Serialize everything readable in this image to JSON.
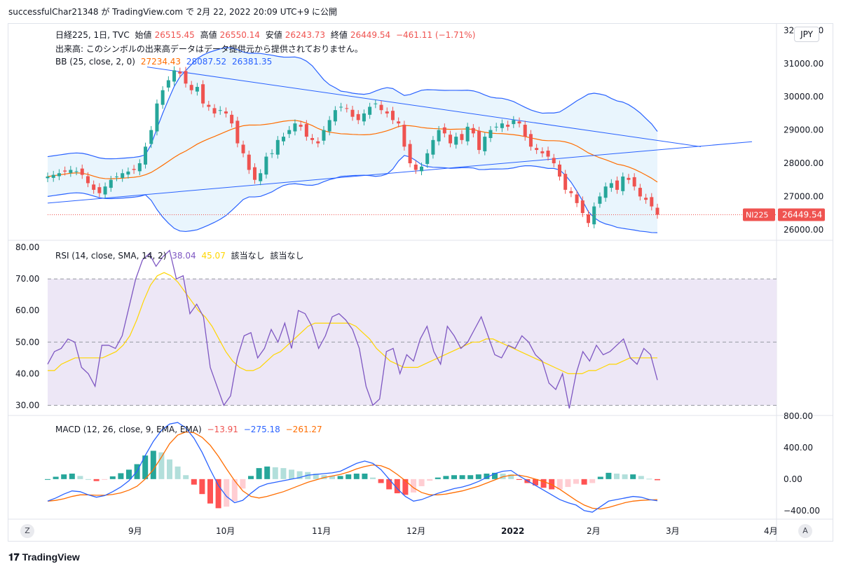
{
  "caption": "successfulChar21348 が TradingView.com で 2月 22, 2022 20:09 UTC+9 に公開",
  "currency_button": "JPY",
  "scale_toggle_left": "Z",
  "scale_toggle_right": "A",
  "footer": {
    "mark": "𝟏𝟕",
    "brand": "TradingView"
  },
  "main_legend": {
    "symbol": "日経225, 1日, TVC",
    "open_label": "始値",
    "open": "26515.45",
    "high_label": "高値",
    "high": "26550.14",
    "low_label": "安値",
    "low": "26243.73",
    "close_label": "終値",
    "close": "26449.54",
    "change": "−461.11 (−1.71%)",
    "volume_note": "出来高: このシンボルの出来高データはデータ提供元から提供されておりません。",
    "bb_label": "BB (25, close, 2, 0)",
    "bb_basis": "27234.43",
    "bb_upper": "28087.52",
    "bb_lower": "26381.35"
  },
  "rsi_legend": {
    "label": "RSI (14, close, SMA, 14, 2)",
    "rsi": "38.04",
    "sma": "45.07",
    "na1": "該当なし",
    "na2": "該当なし"
  },
  "macd_legend": {
    "label": "MACD (12, 26, close, 9, EMA, EMA)",
    "hist": "−13.91",
    "macd": "−275.18",
    "signal": "−261.27"
  },
  "price_tag": {
    "symbol": "NI225",
    "value": "26449.54"
  },
  "colors": {
    "up": "#26a69a",
    "down": "#ef5350",
    "bb_fill": "#e3f2fd",
    "bb_line": "#2962ff",
    "basis": "#ff6d00",
    "rsi": "#7e57c2",
    "rsi_ma": "#ffd600",
    "rsi_band": "#ede7f6"
  },
  "chart_data": [
    {
      "type": "candlestick",
      "title": "日経225, 1日, TVC",
      "y_axis_ticks": [
        "32000.00",
        "31000.00",
        "30000.00",
        "29000.00",
        "28000.00",
        "27000.00",
        "26000.00"
      ],
      "x_axis_ticks": [
        "9月",
        "10月",
        "11月",
        "12月",
        "2022",
        "2月",
        "3月",
        "4月"
      ],
      "ylim": [
        25700,
        32200
      ],
      "close_series": [
        27600,
        27650,
        27700,
        27750,
        27800,
        27760,
        27650,
        27400,
        27200,
        27100,
        27300,
        27500,
        27600,
        27700,
        27750,
        27800,
        28000,
        28500,
        29000,
        29800,
        30200,
        30500,
        30800,
        30700,
        30400,
        30200,
        30300,
        29800,
        29700,
        29500,
        29600,
        29500,
        29200,
        28600,
        28300,
        27800,
        27500,
        27700,
        28200,
        28300,
        28700,
        28800,
        29000,
        29200,
        29100,
        28800,
        28700,
        28600,
        29000,
        29300,
        29600,
        29700,
        29650,
        29400,
        29300,
        29500,
        29700,
        29800,
        29600,
        29500,
        29300,
        29200,
        28500,
        28000,
        27800,
        27900,
        28300,
        28700,
        29000,
        28900,
        28600,
        28800,
        28700,
        29100,
        28900,
        28400,
        28800,
        29000,
        29100,
        29200,
        29100,
        29300,
        29200,
        28800,
        28500,
        28400,
        28300,
        28200,
        28000,
        27600,
        27200,
        27100,
        26800,
        26500,
        26200,
        26700,
        27000,
        27300,
        27400,
        27200,
        27600,
        27500,
        27300,
        27000,
        26900,
        26700,
        26450
      ]
    },
    {
      "type": "line",
      "title": "RSI (14, close, SMA, 14, 2)",
      "y_axis_ticks": [
        "80.00",
        "70.00",
        "60.00",
        "50.00",
        "40.00",
        "30.00"
      ],
      "ylim": [
        27,
        82
      ],
      "band": [
        30,
        70
      ],
      "series": [
        {
          "name": "RSI",
          "values": [
            43,
            47,
            48,
            51,
            50,
            42,
            40,
            36,
            49,
            49,
            48,
            52,
            61,
            70,
            76,
            78,
            74,
            77,
            79,
            70,
            71,
            59,
            62,
            58,
            42,
            36,
            30,
            33,
            45,
            52,
            53,
            45,
            48,
            54,
            50,
            56,
            48,
            60,
            59,
            55,
            48,
            52,
            58,
            59,
            57,
            54,
            48,
            36,
            30,
            32,
            47,
            48,
            40,
            46,
            44,
            51,
            55,
            47,
            43,
            55,
            52,
            48,
            50,
            54,
            58,
            52,
            46,
            45,
            49,
            48,
            52,
            50,
            46,
            44,
            37,
            35,
            40,
            29,
            40,
            47,
            44,
            49,
            46,
            47,
            49,
            51,
            45,
            43,
            48,
            46,
            38
          ]
        },
        {
          "name": "SMA",
          "values": [
            41,
            41,
            43,
            44,
            45,
            45,
            45,
            45,
            45,
            46,
            47,
            49,
            52,
            57,
            63,
            68,
            71,
            72,
            71,
            69,
            66,
            63,
            60,
            58,
            55,
            51,
            47,
            44,
            42,
            41,
            41,
            42,
            44,
            46,
            47,
            49,
            51,
            53,
            55,
            56,
            56,
            56,
            56,
            56,
            56,
            55,
            53,
            51,
            48,
            46,
            44,
            43,
            42,
            42,
            42,
            43,
            44,
            45,
            46,
            47,
            48,
            49,
            50,
            50,
            51,
            51,
            50,
            49,
            48,
            47,
            46,
            45,
            44,
            43,
            42,
            41,
            40,
            40,
            40,
            41,
            41,
            42,
            43,
            43,
            44,
            45,
            45,
            45,
            45,
            45
          ]
        }
      ]
    },
    {
      "type": "line",
      "title": "MACD (12, 26, close, 9, EMA, EMA)",
      "y_axis_ticks": [
        "800.00",
        "400.00",
        "0.00",
        "−400.00"
      ],
      "ylim": [
        -500,
        800
      ],
      "series": [
        {
          "name": "MACD",
          "values": [
            -280,
            -240,
            -190,
            -150,
            -160,
            -200,
            -230,
            -210,
            -160,
            -100,
            -20,
            100,
            300,
            480,
            620,
            700,
            720,
            650,
            520,
            340,
            120,
            -80,
            -220,
            -300,
            -270,
            -180,
            -100,
            -60,
            -40,
            -20,
            0,
            20,
            50,
            60,
            70,
            80,
            100,
            150,
            200,
            230,
            200,
            120,
            0,
            -120,
            -220,
            -280,
            -260,
            -220,
            -180,
            -150,
            -120,
            -100,
            -70,
            -30,
            20,
            70,
            100,
            110,
            40,
            -20,
            -80,
            -140,
            -200,
            -260,
            -300,
            -330,
            -400,
            -420,
            -350,
            -280,
            -260,
            -240,
            -220,
            -230,
            -260,
            -275
          ]
        },
        {
          "name": "Signal",
          "values": [
            -280,
            -270,
            -250,
            -220,
            -200,
            -200,
            -205,
            -205,
            -195,
            -175,
            -140,
            -90,
            0,
            120,
            280,
            450,
            560,
            600,
            590,
            530,
            430,
            290,
            130,
            -20,
            -150,
            -220,
            -240,
            -220,
            -190,
            -160,
            -120,
            -80,
            -40,
            -10,
            20,
            40,
            60,
            90,
            130,
            160,
            180,
            170,
            130,
            60,
            -20,
            -110,
            -170,
            -200,
            -200,
            -190,
            -170,
            -150,
            -120,
            -90,
            -50,
            -10,
            30,
            50,
            50,
            30,
            0,
            -30,
            -70,
            -130,
            -200,
            -270,
            -330,
            -370,
            -380,
            -360,
            -330,
            -300,
            -280,
            -270,
            -265,
            -261
          ]
        }
      ]
    }
  ]
}
